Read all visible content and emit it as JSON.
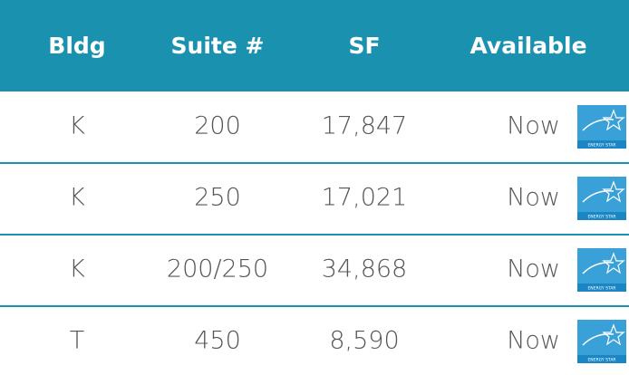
{
  "table": {
    "header": [
      "Bldg",
      "Suite #",
      "SF",
      "Available"
    ],
    "rows": [
      [
        "K",
        "200",
        "17,847",
        "Now"
      ],
      [
        "K",
        "250",
        "17,021",
        "Now"
      ],
      [
        "K",
        "200/250",
        "34,868",
        "Now"
      ],
      [
        "T",
        "450",
        "8,590",
        "Now"
      ]
    ],
    "badge": "ENERGY STAR"
  }
}
